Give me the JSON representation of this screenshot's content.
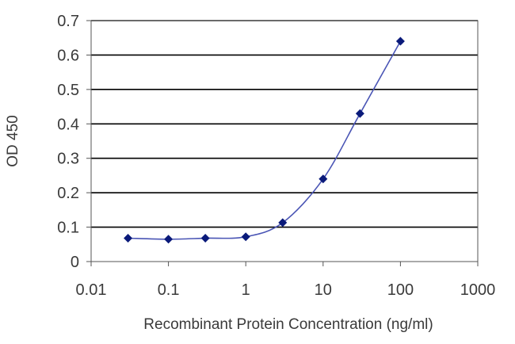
{
  "chart_data": {
    "type": "line",
    "title": "",
    "xlabel": "Recombinant Protein Concentration (ng/ml)",
    "ylabel": "OD 450",
    "x_scale": "log",
    "xlim": [
      0.01,
      1000
    ],
    "ylim": [
      0,
      0.7
    ],
    "x_ticks": [
      "0.01",
      "0.1",
      "1",
      "10",
      "100",
      "1000"
    ],
    "y_ticks": [
      "0",
      "0.1",
      "0.2",
      "0.3",
      "0.4",
      "0.5",
      "0.6",
      "0.7"
    ],
    "grid": "horizontal",
    "legend": "none",
    "series": [
      {
        "x": [
          0.03,
          0.1,
          0.3,
          1,
          3,
          10,
          30,
          100
        ],
        "y": [
          0.068,
          0.065,
          0.068,
          0.072,
          0.113,
          0.24,
          0.43,
          0.64
        ]
      }
    ],
    "colors": {
      "line": "#4a55b5",
      "marker": "#0a1a7a",
      "grid": "#000000",
      "text": "#3a3a3a"
    }
  }
}
